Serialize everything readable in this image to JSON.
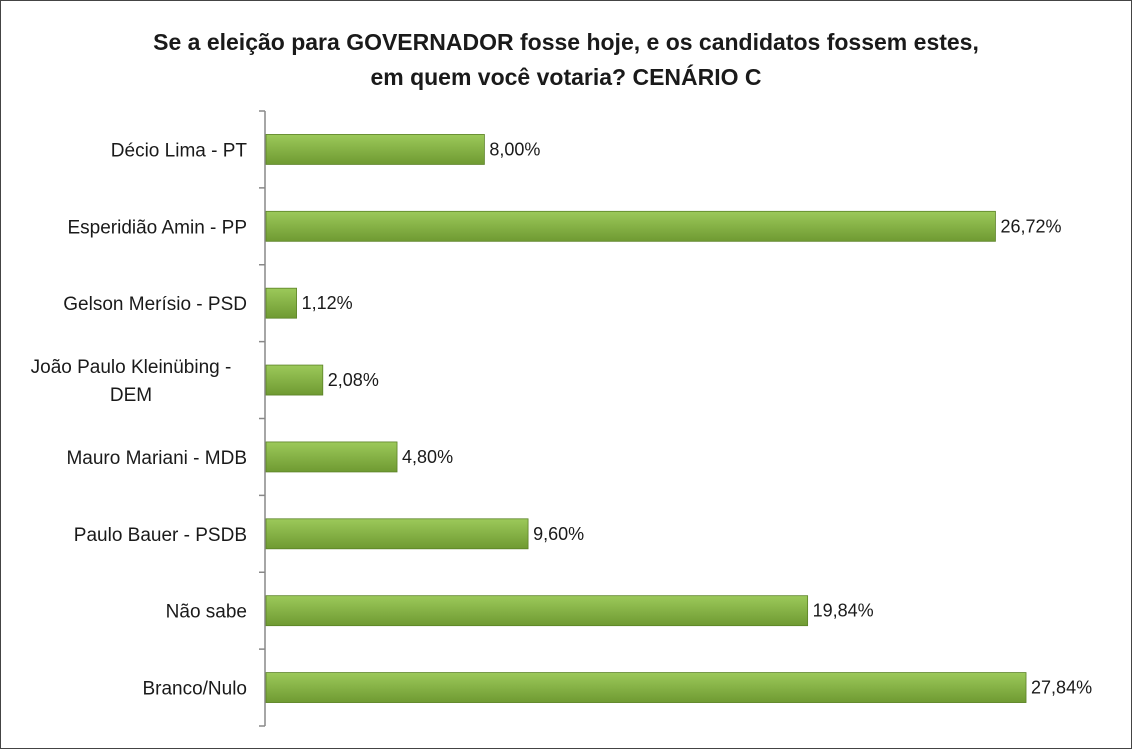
{
  "chart_data": {
    "type": "bar",
    "orientation": "horizontal",
    "title_lines": [
      "Se a eleição para GOVERNADOR fosse hoje, e os candidatos fossem estes,",
      "em quem você votaria? CENÁRIO C"
    ],
    "categories": [
      [
        "Décio Lima - PT"
      ],
      [
        "Esperidião Amin - PP"
      ],
      [
        "Gelson Merísio - PSD"
      ],
      [
        "João Paulo Kleinübing -",
        "DEM"
      ],
      [
        "Mauro Mariani - MDB"
      ],
      [
        "Paulo Bauer - PSDB"
      ],
      [
        "Não sabe"
      ],
      [
        "Branco/Nulo"
      ]
    ],
    "values": [
      8.0,
      26.72,
      1.12,
      2.08,
      4.8,
      9.6,
      19.84,
      27.84
    ],
    "value_labels": [
      "8,00%",
      "26,72%",
      "1,12%",
      "2,08%",
      "4,80%",
      "9,60%",
      "19,84%",
      "27,84%"
    ],
    "xlim": [
      0,
      30
    ],
    "grid": false,
    "legend": "none",
    "colors": {
      "bar_top": "#9cc95a",
      "bar_bottom": "#6f9a32",
      "bar_edge": "#5b8226",
      "axis": "#888888"
    }
  }
}
